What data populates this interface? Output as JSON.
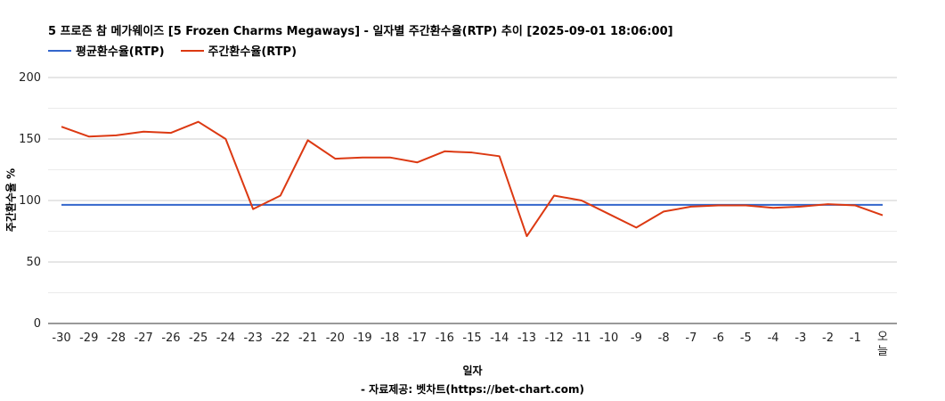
{
  "chart_data": {
    "type": "line",
    "title": "5 프로즌 참 메가웨이즈 [5 Frozen Charms Megaways] - 일자별 주간환수율(RTP) 추이 [2025-09-01 18:06:00]",
    "xlabel": "일자",
    "ylabel": "주간환수율 %",
    "source": "- 자료제공: 벳차트(https://bet-chart.com)",
    "ylim": [
      0,
      200
    ],
    "yticks": [
      0,
      50,
      100,
      150,
      200
    ],
    "legend_position": "top-left",
    "grid": true,
    "categories": [
      "-30",
      "-29",
      "-28",
      "-27",
      "-26",
      "-25",
      "-24",
      "-23",
      "-22",
      "-21",
      "-20",
      "-19",
      "-18",
      "-17",
      "-16",
      "-15",
      "-14",
      "-13",
      "-12",
      "-11",
      "-10",
      "-9",
      "-8",
      "-7",
      "-6",
      "-5",
      "-4",
      "-3",
      "-2",
      "-1",
      "오늘"
    ],
    "series": [
      {
        "name": "평균환수율(RTP)",
        "color": "#3366cc",
        "values": [
          96.5,
          96.5,
          96.5,
          96.5,
          96.5,
          96.5,
          96.5,
          96.5,
          96.5,
          96.5,
          96.5,
          96.5,
          96.5,
          96.5,
          96.5,
          96.5,
          96.5,
          96.5,
          96.5,
          96.5,
          96.5,
          96.5,
          96.5,
          96.5,
          96.5,
          96.5,
          96.5,
          96.5,
          96.5,
          96.5,
          96.5
        ]
      },
      {
        "name": "주간환수율(RTP)",
        "color": "#dc3912",
        "values": [
          160,
          152,
          153,
          156,
          155,
          164,
          150,
          93,
          104,
          149,
          134,
          135,
          135,
          131,
          140,
          139,
          136,
          71,
          104,
          100,
          89,
          78,
          91,
          95,
          96,
          96,
          94,
          95,
          97,
          96,
          88
        ]
      }
    ]
  }
}
